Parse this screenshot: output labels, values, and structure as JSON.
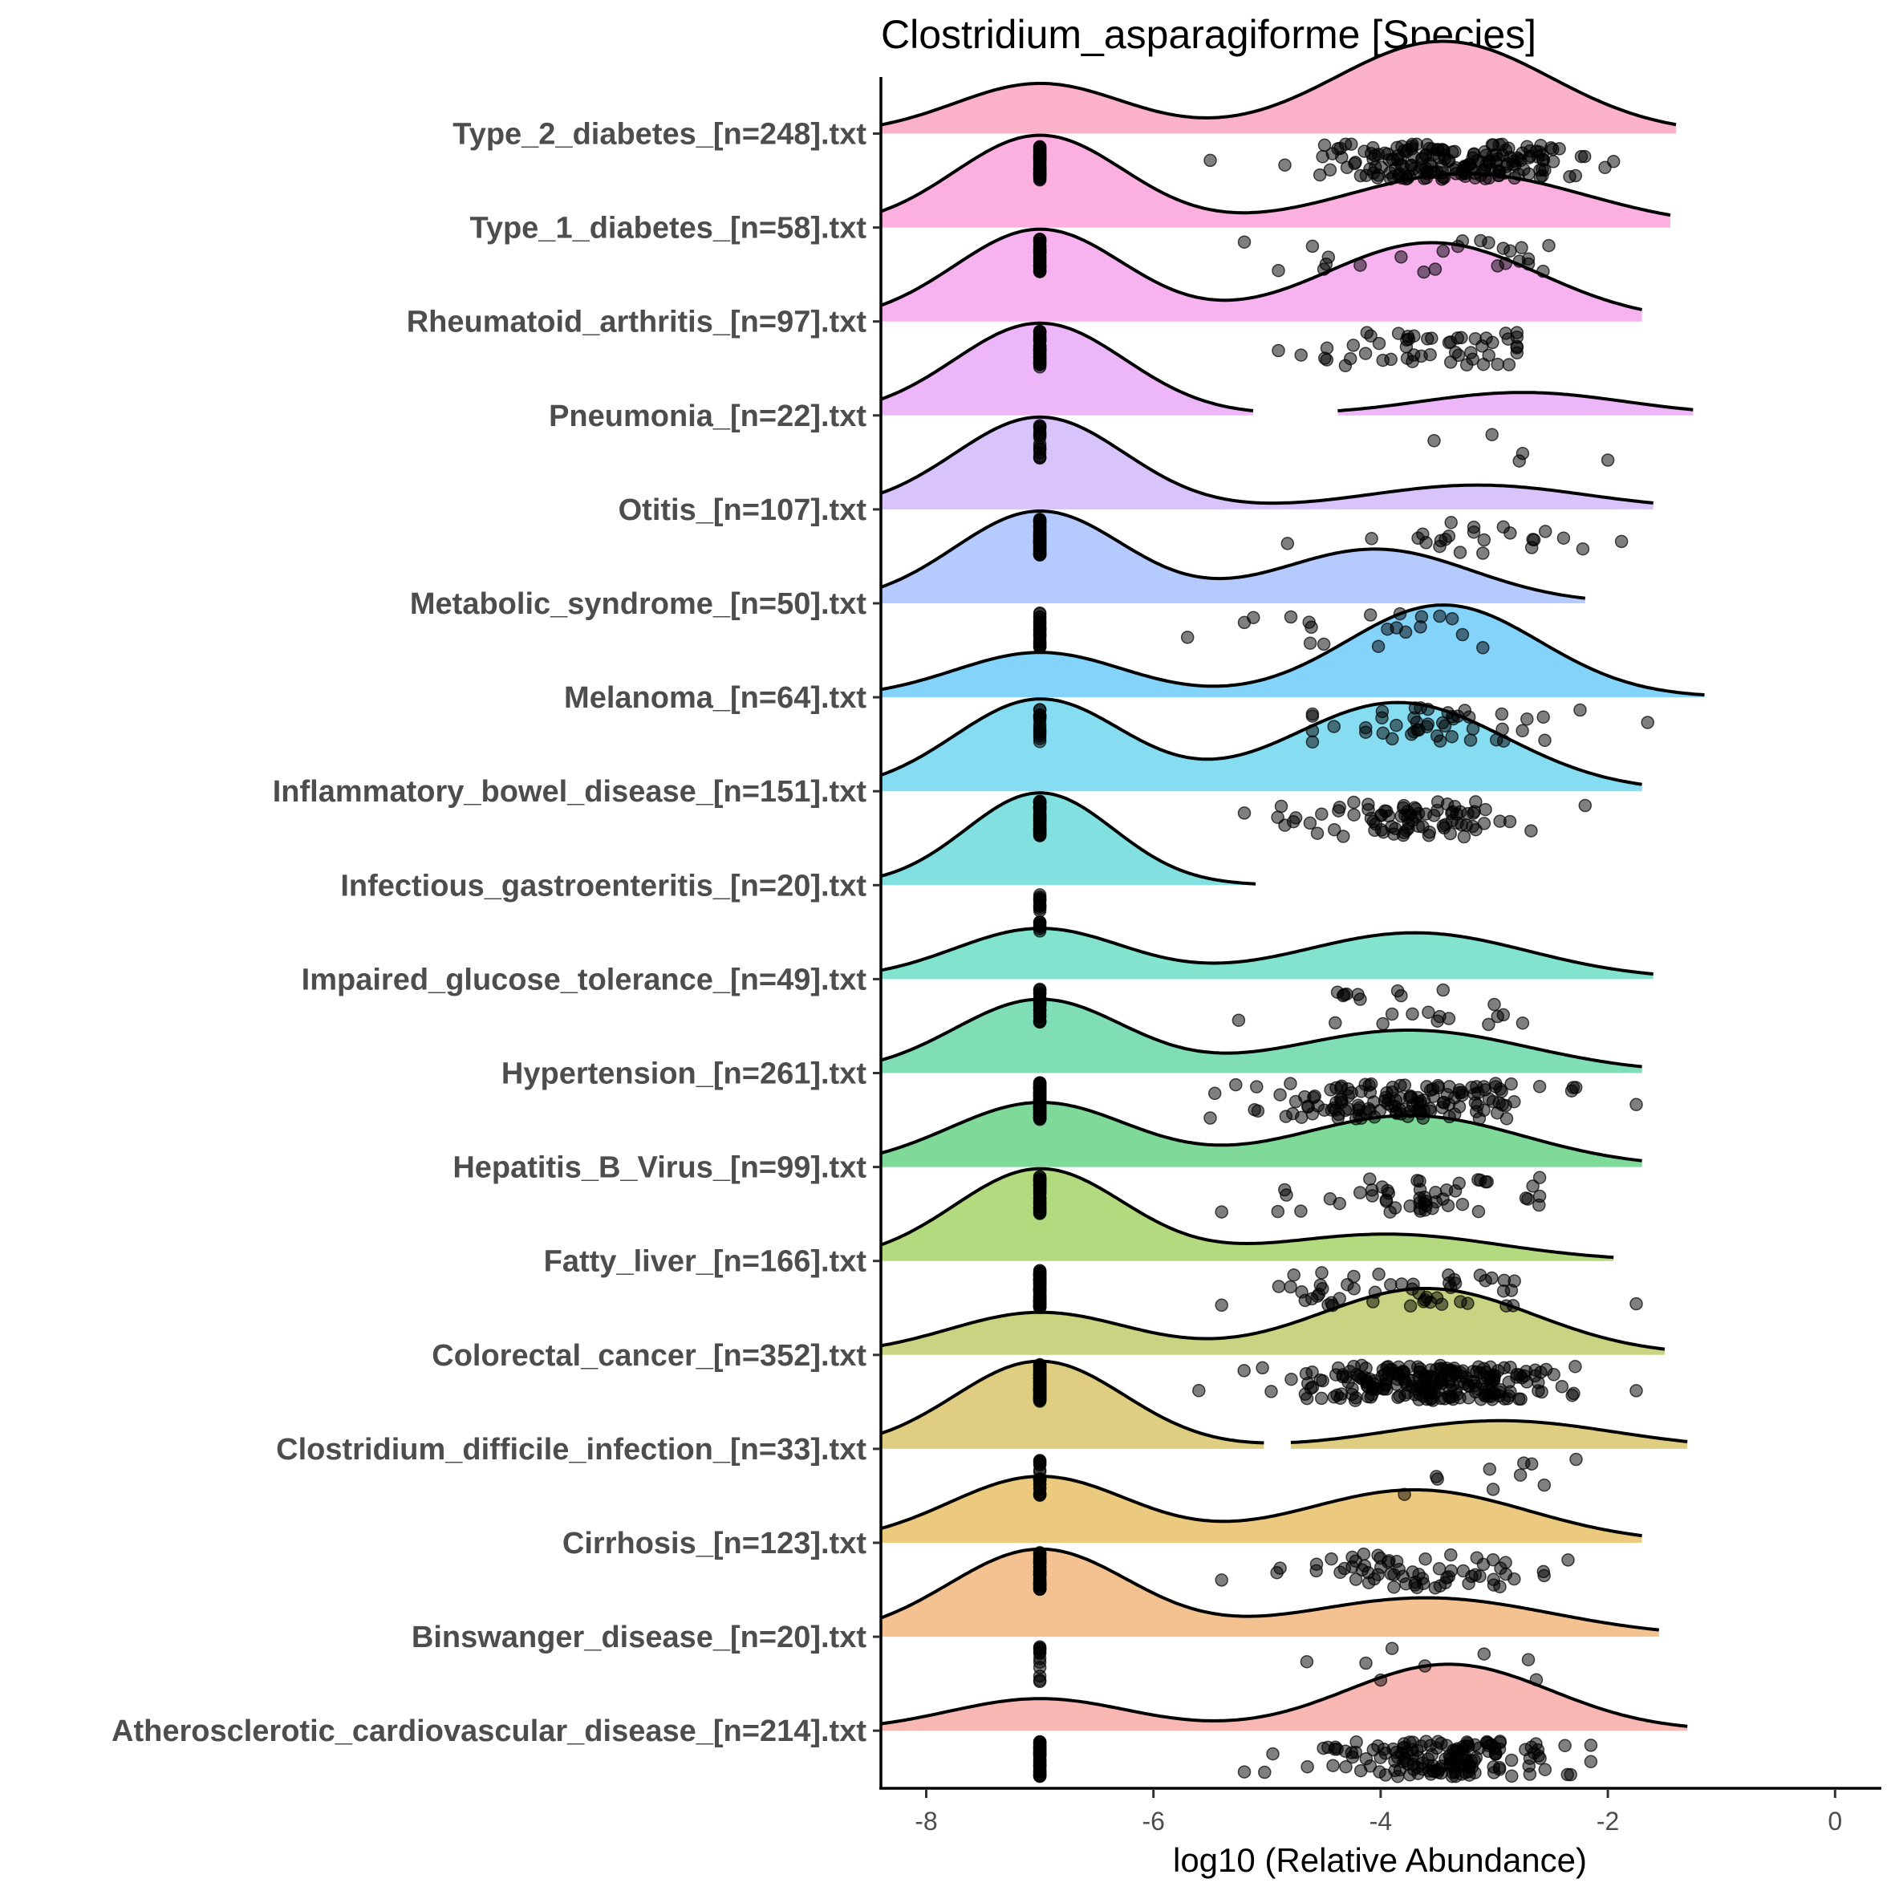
{
  "chart_data": {
    "type": "raincloud",
    "title": "Clostridium_asparagiforme [Species]",
    "xlabel": "log10 (Relative Abundance)",
    "ylabel": "",
    "xlim": [
      -8.4,
      0.4
    ],
    "xticks": [
      -8,
      -6,
      -4,
      -2,
      0
    ],
    "xtick_labels": [
      "-8",
      "-6",
      "-4",
      "-2",
      "0"
    ],
    "grid": false,
    "legend": "none",
    "zero_value": -7,
    "point_color": "#000000",
    "point_alpha": 0.5,
    "groups": [
      {
        "label": "Type_2_diabetes_[n=248].txt",
        "n": 248,
        "fill": "#fbb1c9",
        "density": {
          "zero_weight": 0.3,
          "zero_sd": 0.75,
          "pos_mean": -3.45,
          "pos_sd": 0.95,
          "pos_weight": 0.7,
          "range": [
            -8.4,
            -1.4
          ],
          "gap": null,
          "peak": 1.0
        },
        "zero_count": 58,
        "nonzero": {
          "count": 190,
          "mean": -3.4,
          "sd": 0.55,
          "min": -5.5,
          "max": -1.95
        }
      },
      {
        "label": "Type_1_diabetes_[n=58].txt",
        "n": 58,
        "fill": "#fcb0e0",
        "density": {
          "zero_weight": 0.55,
          "zero_sd": 0.75,
          "pos_mean": -3.25,
          "pos_sd": 1.05,
          "pos_weight": 0.45,
          "range": [
            -8.4,
            -1.45
          ],
          "gap": null,
          "peak": 1.0
        },
        "zero_count": 33,
        "nonzero": {
          "points": [
            -5.2,
            -4.9,
            -4.6,
            -4.5,
            -4.48,
            -4.46,
            -4.18,
            -3.82,
            -3.62,
            -3.52,
            -3.45,
            -3.32,
            -3.28,
            -3.12,
            -3.05,
            -2.97,
            -2.92,
            -2.9,
            -2.86,
            -2.78,
            -2.76,
            -2.7,
            -2.7,
            -2.57,
            -2.52
          ]
        }
      },
      {
        "label": "Rheumatoid_arthritis_[n=97].txt",
        "n": 97,
        "fill": "#f7b2f0",
        "density": {
          "zero_weight": 0.48,
          "zero_sd": 0.75,
          "pos_mean": -3.55,
          "pos_sd": 0.95,
          "pos_weight": 0.52,
          "range": [
            -8.4,
            -1.7
          ],
          "gap": null,
          "peak": 1.0
        },
        "zero_count": 45,
        "nonzero": {
          "count": 52,
          "mean": -3.55,
          "sd": 0.45,
          "min": -4.9,
          "max": -2.8
        }
      },
      {
        "label": "Pneumonia_[n=22].txt",
        "n": 22,
        "fill": "#ecb6f8",
        "density": {
          "zero_weight": 0.77,
          "zero_sd": 0.75,
          "pos_mean": -2.75,
          "pos_sd": 0.9,
          "pos_weight": 0.23,
          "range": [
            -8.4,
            -1.25
          ],
          "gap": [
            -5.1,
            -4.4
          ],
          "peak": 1.0
        },
        "zero_count": 17,
        "nonzero": {
          "points": [
            -3.53,
            -3.02,
            -2.78,
            -2.75,
            -2.0
          ]
        }
      },
      {
        "label": "Otitis_[n=107].txt",
        "n": 107,
        "fill": "#d8c3fb",
        "density": {
          "zero_weight": 0.75,
          "zero_sd": 0.75,
          "pos_mean": -3.15,
          "pos_sd": 0.95,
          "pos_weight": 0.25,
          "range": [
            -8.4,
            -1.6
          ],
          "gap": null,
          "peak": 1.0
        },
        "zero_count": 83,
        "nonzero": {
          "points": [
            -4.82,
            -4.08,
            -3.67,
            -3.63,
            -3.6,
            -3.48,
            -3.47,
            -3.43,
            -3.4,
            -3.38,
            -3.3,
            -3.18,
            -3.18,
            -3.1,
            -3.09,
            -2.92,
            -2.86,
            -2.67,
            -2.66,
            -2.65,
            -2.55,
            -2.39,
            -2.22,
            -1.88
          ]
        }
      },
      {
        "label": "Metabolic_syndrome_[n=50].txt",
        "n": 50,
        "fill": "#b5cafe",
        "density": {
          "zero_weight": 0.6,
          "zero_sd": 0.75,
          "pos_mean": -4.05,
          "pos_sd": 0.85,
          "pos_weight": 0.4,
          "range": [
            -8.4,
            -2.2
          ],
          "gap": null,
          "peak": 1.0
        },
        "zero_count": 30,
        "nonzero": {
          "points": [
            -5.7,
            -5.2,
            -5.12,
            -4.79,
            -4.63,
            -4.62,
            -4.61,
            -4.5,
            -4.09,
            -4.02,
            -3.94,
            -3.86,
            -3.83,
            -3.78,
            -3.64,
            -3.65,
            -3.48,
            -3.37,
            -3.28,
            -3.1
          ]
        }
      },
      {
        "label": "Melanoma_[n=64].txt",
        "n": 64,
        "fill": "#84d3fb",
        "density": {
          "zero_weight": 0.3,
          "zero_sd": 0.75,
          "pos_mean": -3.45,
          "pos_sd": 0.85,
          "pos_weight": 0.7,
          "range": [
            -8.4,
            -1.15
          ],
          "gap": null,
          "peak": 1.0
        },
        "zero_count": 18,
        "nonzero": {
          "count": 46,
          "mean": -3.45,
          "sd": 0.55,
          "min": -4.6,
          "max": -1.65
        }
      },
      {
        "label": "Inflammatory_bowel_disease_[n=151].txt",
        "n": 151,
        "fill": "#86dcf0",
        "density": {
          "zero_weight": 0.45,
          "zero_sd": 0.75,
          "pos_mean": -3.85,
          "pos_sd": 0.95,
          "pos_weight": 0.55,
          "range": [
            -8.4,
            -1.7
          ],
          "gap": null,
          "peak": 1.0
        },
        "zero_count": 68,
        "nonzero": {
          "count": 83,
          "mean": -3.75,
          "sd": 0.55,
          "min": -5.2,
          "max": -2.2
        }
      },
      {
        "label": "Infectious_gastroenteritis_[n=20].txt",
        "n": 20,
        "fill": "#82e0e1",
        "density": {
          "zero_weight": 1.0,
          "zero_sd": 0.65,
          "pos_mean": -3.5,
          "pos_sd": 1.0,
          "pos_weight": 0.0,
          "range": [
            -8.4,
            -5.1
          ],
          "gap": null,
          "peak": 1.0
        },
        "zero_count": 20,
        "nonzero": {
          "points": []
        }
      },
      {
        "label": "Impaired_glucose_tolerance_[n=49].txt",
        "n": 49,
        "fill": "#82e3cf",
        "density": {
          "zero_weight": 0.45,
          "zero_sd": 0.75,
          "pos_mean": -3.7,
          "pos_sd": 1.0,
          "pos_weight": 0.55,
          "range": [
            -8.4,
            -1.6
          ],
          "gap": null,
          "peak": 0.55
        },
        "zero_count": 26,
        "nonzero": {
          "points": [
            -5.25,
            -4.4,
            -4.38,
            -4.33,
            -4.32,
            -4.3,
            -4.2,
            -4.18,
            -3.98,
            -3.9,
            -3.85,
            -3.82,
            -3.72,
            -3.58,
            -3.5,
            -3.48,
            -3.45,
            -3.4,
            -3.05,
            -3.0,
            -2.97,
            -2.92,
            -2.75
          ]
        }
      },
      {
        "label": "Hypertension_[n=261].txt",
        "n": 261,
        "fill": "#7fdeb6",
        "density": {
          "zero_weight": 0.55,
          "zero_sd": 0.75,
          "pos_mean": -3.75,
          "pos_sd": 1.05,
          "pos_weight": 0.45,
          "range": [
            -8.4,
            -1.7
          ],
          "gap": null,
          "peak": 0.8
        },
        "zero_count": 120,
        "nonzero": {
          "count": 141,
          "mean": -3.75,
          "sd": 0.6,
          "min": -5.5,
          "max": -1.75
        }
      },
      {
        "label": "Hepatitis_B_Virus_[n=99].txt",
        "n": 99,
        "fill": "#7fda9a",
        "density": {
          "zero_weight": 0.5,
          "zero_sd": 0.8,
          "pos_mean": -3.75,
          "pos_sd": 1.0,
          "pos_weight": 0.5,
          "range": [
            -8.4,
            -1.7
          ],
          "gap": null,
          "peak": 0.7
        },
        "zero_count": 48,
        "nonzero": {
          "count": 51,
          "mean": -3.75,
          "sd": 0.55,
          "min": -5.4,
          "max": -2.6
        }
      },
      {
        "label": "Fatty_liver_[n=166].txt",
        "n": 166,
        "fill": "#b3da7e",
        "density": {
          "zero_weight": 0.72,
          "zero_sd": 0.75,
          "pos_mean": -3.95,
          "pos_sd": 1.0,
          "pos_weight": 0.28,
          "range": [
            -8.4,
            -1.95
          ],
          "gap": null,
          "peak": 1.0
        },
        "zero_count": 115,
        "nonzero": {
          "count": 51,
          "mean": -3.85,
          "sd": 0.6,
          "min": -5.4,
          "max": -1.75
        }
      },
      {
        "label": "Colorectal_cancer_[n=352].txt",
        "n": 352,
        "fill": "#c9d381",
        "density": {
          "zero_weight": 0.35,
          "zero_sd": 0.8,
          "pos_mean": -3.6,
          "pos_sd": 0.95,
          "pos_weight": 0.65,
          "range": [
            -8.4,
            -1.5
          ],
          "gap": null,
          "peak": 0.72
        },
        "zero_count": 120,
        "nonzero": {
          "count": 232,
          "mean": -3.6,
          "sd": 0.55,
          "min": -5.6,
          "max": -1.75
        }
      },
      {
        "label": "Clostridium_difficile_infection_[n=33].txt",
        "n": 33,
        "fill": "#dfcd81",
        "density": {
          "zero_weight": 0.7,
          "zero_sd": 0.75,
          "pos_mean": -2.95,
          "pos_sd": 1.0,
          "pos_weight": 0.3,
          "range": [
            -8.4,
            -1.3
          ],
          "gap": [
            -5.0,
            -4.8
          ],
          "peak": 0.95
        },
        "zero_count": 23,
        "nonzero": {
          "points": [
            -3.79,
            -3.51,
            -3.5,
            -3.04,
            -3.01,
            -2.77,
            -2.74,
            -2.67,
            -2.56,
            -2.28
          ]
        }
      },
      {
        "label": "Cirrhosis_[n=123].txt",
        "n": 123,
        "fill": "#ebc97e",
        "density": {
          "zero_weight": 0.5,
          "zero_sd": 0.8,
          "pos_mean": -3.7,
          "pos_sd": 1.0,
          "pos_weight": 0.5,
          "range": [
            -8.4,
            -1.7
          ],
          "gap": null,
          "peak": 0.72
        },
        "zero_count": 58,
        "nonzero": {
          "count": 65,
          "mean": -3.7,
          "sd": 0.5,
          "min": -5.4,
          "max": -2.35
        }
      },
      {
        "label": "Binswanger_disease_[n=20].txt",
        "n": 20,
        "fill": "#f4c291",
        "density": {
          "zero_weight": 0.62,
          "zero_sd": 0.8,
          "pos_mean": -3.6,
          "pos_sd": 1.1,
          "pos_weight": 0.38,
          "range": [
            -8.4,
            -1.55
          ],
          "gap": null,
          "peak": 0.95
        },
        "zero_count": 12,
        "nonzero": {
          "points": [
            -4.65,
            -4.13,
            -4.0,
            -3.9,
            -3.61,
            -3.09,
            -2.7,
            -2.63
          ]
        }
      },
      {
        "label": "Atherosclerotic_cardiovascular_disease_[n=214].txt",
        "n": 214,
        "fill": "#f9b7b3",
        "density": {
          "zero_weight": 0.3,
          "zero_sd": 0.8,
          "pos_mean": -3.4,
          "pos_sd": 0.9,
          "pos_weight": 0.7,
          "range": [
            -8.4,
            -1.3
          ],
          "gap": null,
          "peak": 0.72
        },
        "zero_count": 60,
        "nonzero": {
          "count": 154,
          "mean": -3.45,
          "sd": 0.5,
          "min": -5.2,
          "max": -2.15
        }
      }
    ]
  }
}
